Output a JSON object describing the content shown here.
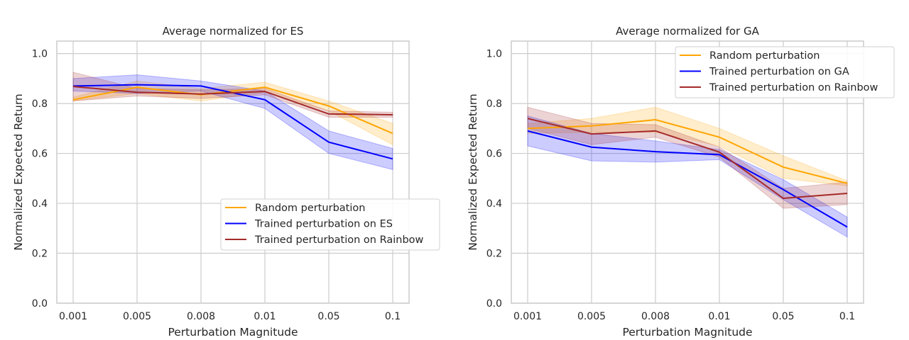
{
  "chart_data": [
    {
      "type": "line",
      "title": "Average normalized for ES",
      "xlabel": "Perturbation Magnitude",
      "ylabel": "Normalized Expected Return",
      "categories": [
        "0.001",
        "0.005",
        "0.008",
        "0.01",
        "0.05",
        "0.1"
      ],
      "ylim": [
        0,
        1.05
      ],
      "yticks": [
        "0.0",
        "0.2",
        "0.4",
        "0.6",
        "0.8",
        "1.0"
      ],
      "grid": true,
      "legend_position": "lower-right",
      "series": [
        {
          "name": "Random perturbation",
          "color": "#FFA500",
          "values": [
            0.815,
            0.865,
            0.835,
            0.865,
            0.79,
            0.68
          ],
          "lower": [
            0.81,
            0.84,
            0.81,
            0.845,
            0.77,
            0.635
          ],
          "upper": [
            0.825,
            0.89,
            0.86,
            0.885,
            0.81,
            0.72
          ]
        },
        {
          "name": "Trained perturbation on ES",
          "color": "#0000FF",
          "values": [
            0.87,
            0.875,
            0.87,
            0.815,
            0.645,
            0.578
          ],
          "lower": [
            0.85,
            0.84,
            0.85,
            0.78,
            0.6,
            0.535
          ],
          "upper": [
            0.9,
            0.915,
            0.89,
            0.85,
            0.69,
            0.62
          ]
        },
        {
          "name": "Trained perturbation on Rainbow",
          "color": "#A52A2A",
          "values": [
            0.868,
            0.845,
            0.838,
            0.848,
            0.758,
            0.755
          ],
          "lower": [
            0.81,
            0.83,
            0.82,
            0.835,
            0.745,
            0.745
          ],
          "upper": [
            0.925,
            0.86,
            0.855,
            0.86,
            0.77,
            0.765
          ]
        }
      ]
    },
    {
      "type": "line",
      "title": "Average normalized for GA",
      "xlabel": "Perturbation Magnitude",
      "ylabel": "Normalized Expected Return",
      "categories": [
        "0.001",
        "0.005",
        "0.008",
        "0.01",
        "0.05",
        "0.1"
      ],
      "ylim": [
        0,
        1.05
      ],
      "yticks": [
        "0.0",
        "0.2",
        "0.4",
        "0.6",
        "0.8",
        "1.0"
      ],
      "grid": true,
      "legend_position": "upper-right",
      "series": [
        {
          "name": "Random perturbation",
          "color": "#FFA500",
          "values": [
            0.7,
            0.71,
            0.735,
            0.665,
            0.545,
            0.48
          ],
          "lower": [
            0.68,
            0.685,
            0.685,
            0.63,
            0.5,
            0.47
          ],
          "upper": [
            0.72,
            0.74,
            0.785,
            0.7,
            0.59,
            0.49
          ]
        },
        {
          "name": "Trained perturbation on GA",
          "color": "#0000FF",
          "values": [
            0.69,
            0.625,
            0.607,
            0.595,
            0.455,
            0.305
          ],
          "lower": [
            0.63,
            0.57,
            0.565,
            0.575,
            0.415,
            0.265
          ],
          "upper": [
            0.75,
            0.68,
            0.65,
            0.615,
            0.495,
            0.345
          ]
        },
        {
          "name": "Trained perturbation on Rainbow",
          "color": "#A52A2A",
          "values": [
            0.74,
            0.678,
            0.69,
            0.605,
            0.42,
            0.44
          ],
          "lower": [
            0.7,
            0.635,
            0.665,
            0.585,
            0.38,
            0.395
          ],
          "upper": [
            0.785,
            0.72,
            0.715,
            0.625,
            0.46,
            0.485
          ]
        }
      ]
    }
  ]
}
